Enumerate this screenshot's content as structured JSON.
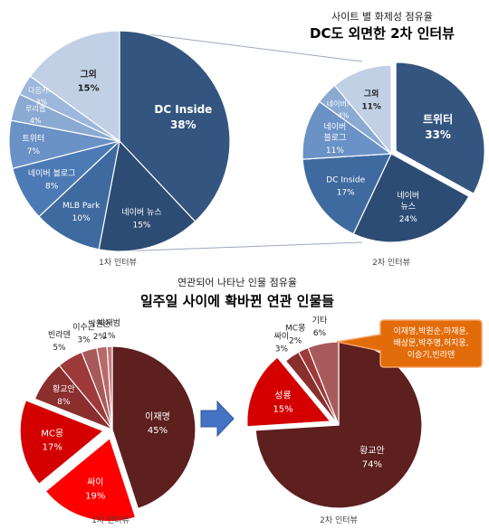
{
  "colors": {
    "top_main": "#33557f",
    "top_dark": "#2c4c74",
    "top_mid1": "#3f6aa0",
    "top_mid2": "#4c7ab4",
    "top_mid3": "#6a92c6",
    "top_light1": "#8aaad2",
    "top_light2": "#9db8dc",
    "top_light3": "#c2d0e6",
    "bot_maroon": "#5e1f1f",
    "bot_red": "#ff0000",
    "bot_crimson": "#d40000",
    "bot_brown": "#8b2e2e",
    "bot_mid": "#9e3a3a",
    "bot_dust": "#a85a5a",
    "bot_pale": "#b86a6a",
    "callout": "#e36c0a",
    "arrow": "#4472c4",
    "connector": "#9aa9c2"
  },
  "section1": {
    "subtitle": "사이트 별 화제성 점유율",
    "title": "DC도 외면한 2차 인터뷰"
  },
  "section2": {
    "subtitle": "연관되어 나타난 인물 점유율",
    "title": "일주일 사이에 확바뀐 연관 인물들"
  },
  "chart_data": [
    {
      "type": "pie",
      "caption": "1차 인터뷰",
      "slices": [
        {
          "label": "DC Inside",
          "value": 38,
          "display": "38%",
          "color": "#33557f"
        },
        {
          "label": "네이버 뉴스",
          "value": 15,
          "display": "15%",
          "color": "#2c4c74"
        },
        {
          "label": "MLB Park",
          "value": 10,
          "display": "10%",
          "color": "#3f6aa0"
        },
        {
          "label": "네이버 블로그",
          "value": 8,
          "display": "8%",
          "color": "#4c7ab4"
        },
        {
          "label": "트위터",
          "value": 7,
          "display": "7%",
          "color": "#6a92c6"
        },
        {
          "label": "루리웹",
          "value": 4,
          "display": "4%",
          "color": "#8aaad2"
        },
        {
          "label": "다음카페",
          "value": 3,
          "display": "3%",
          "color": "#9db8dc"
        },
        {
          "label": "그외",
          "value": 15,
          "display": "15%",
          "color": "#c2d0e6"
        }
      ]
    },
    {
      "type": "pie",
      "caption": "2차 인터뷰",
      "slices": [
        {
          "label": "트위터",
          "value": 33,
          "display": "33%",
          "color": "#33557f"
        },
        {
          "label": "네이버\n뉴스",
          "value": 24,
          "display": "24%",
          "color": "#2c4c74"
        },
        {
          "label": "DC Inside",
          "value": 17,
          "display": "17%",
          "color": "#3f6aa0"
        },
        {
          "label": "네이버\n블로그",
          "value": 11,
          "display": "11%",
          "color": "#6a92c6"
        },
        {
          "label": "네이버카페",
          "value": 4,
          "display": "4%",
          "color": "#8aaad2"
        },
        {
          "label": "그외",
          "value": 11,
          "display": "11%",
          "color": "#c2d0e6"
        }
      ]
    },
    {
      "type": "pie",
      "caption": "1차 인터뷰",
      "slices": [
        {
          "label": "이재명",
          "value": 45,
          "display": "45%",
          "color": "#5e1f1f"
        },
        {
          "label": "싸이",
          "value": 19,
          "display": "19%",
          "color": "#ff0000"
        },
        {
          "label": "MC몽",
          "value": 17,
          "display": "17%",
          "color": "#d40000"
        },
        {
          "label": "황교안",
          "value": 8,
          "display": "8%",
          "color": "#8b2e2e"
        },
        {
          "label": "빈라덴",
          "value": 5,
          "display": "5%",
          "color": "#9e3a3a"
        },
        {
          "label": "이수근",
          "value": 3,
          "display": "3%",
          "color": "#a85a5a"
        },
        {
          "label": "박원순",
          "value": 2,
          "display": "2%",
          "color": "#b86a6a"
        },
        {
          "label": "박재범",
          "value": 1,
          "display": "1%",
          "color": "#c47a7a"
        }
      ]
    },
    {
      "type": "pie",
      "caption": "2차 인터뷰",
      "slices": [
        {
          "label": "황교안",
          "value": 74,
          "display": "74%",
          "color": "#5e1f1f"
        },
        {
          "label": "성룡",
          "value": 15,
          "display": "15%",
          "color": "#d40000"
        },
        {
          "label": "싸이",
          "value": 3,
          "display": "3%",
          "color": "#8b2e2e"
        },
        {
          "label": "MC몽",
          "value": 2,
          "display": "2%",
          "color": "#9e3a3a"
        },
        {
          "label": "기타",
          "value": 6,
          "display": "6%",
          "color": "#a85a5a"
        }
      ],
      "callout": [
        "이재명,박원순,마재윤,",
        "배상문,박주명,허지웅,",
        "이승기,빈라덴"
      ]
    }
  ]
}
